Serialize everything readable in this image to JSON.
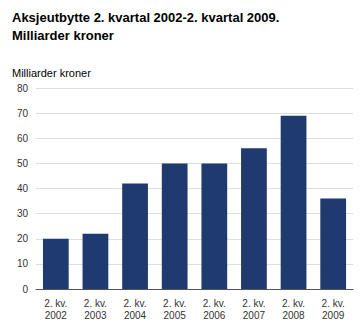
{
  "chart_data": {
    "type": "bar",
    "title": "Aksjeutbytte 2. kvartal 2002-2. kvartal 2009.",
    "subtitle": "Milliarder kroner",
    "ylabel": "Milliarder kroner",
    "categories": [
      "2. kv.\n2002",
      "2. kv.\n2003",
      "2. kv.\n2004",
      "2. kv.\n2005",
      "2. kv.\n2006",
      "2. kv.\n2007",
      "2. kv.\n2008",
      "2. kv.\n2009"
    ],
    "values": [
      20,
      22,
      42,
      50,
      50,
      56,
      69,
      36
    ],
    "color": "#1F3A6E",
    "ylim": [
      0,
      80
    ],
    "yticks": [
      0,
      10,
      20,
      30,
      40,
      50,
      60,
      70,
      80
    ],
    "grid": true
  }
}
